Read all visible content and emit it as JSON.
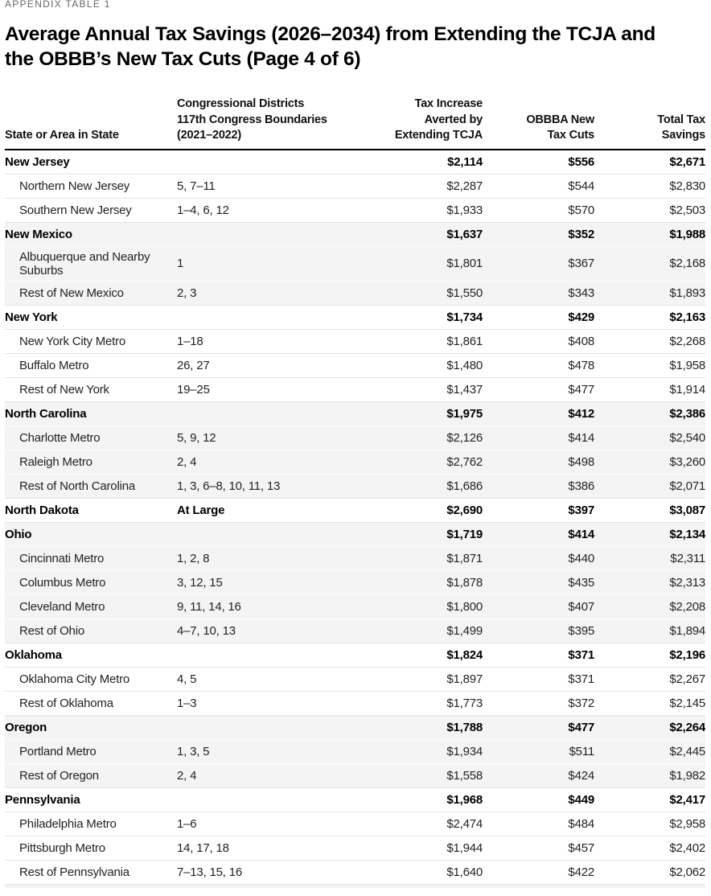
{
  "eyebrow": "APPENDIX TABLE 1",
  "title": "Average Annual Tax Savings (2026–2034) from Extending the TCJA and\nthe OBBB’s New Tax Cuts (Page 4 of 6)",
  "colors": {
    "shaded_row_bg": "#f4f4f4",
    "separator": "#e3e3e3",
    "header_rule": "#000000",
    "eyebrow_text": "#666666",
    "body_text": "#222222"
  },
  "table": {
    "columns": {
      "state": "State or Area in State",
      "districts": "Congressional Districts\n117th Congress Boundaries\n(2021–2022)",
      "tcja": "Tax Increase\nAverted by\nExtending TCJA",
      "obbba": "OBBBA New\nTax Cuts",
      "total": "Total Tax\nSavings"
    },
    "rows": [
      {
        "type": "state",
        "shaded": false,
        "name": "New Jersey",
        "districts": "",
        "tcja": "$2,114",
        "obbba": "$556",
        "total": "$2,671"
      },
      {
        "type": "area",
        "shaded": false,
        "name": "Northern New Jersey",
        "districts": "5, 7–11",
        "tcja": "$2,287",
        "obbba": "$544",
        "total": "$2,830"
      },
      {
        "type": "area",
        "shaded": false,
        "name": "Southern New Jersey",
        "districts": "1–4, 6, 12",
        "tcja": "$1,933",
        "obbba": "$570",
        "total": "$2,503"
      },
      {
        "type": "state",
        "shaded": true,
        "name": "New Mexico",
        "districts": "",
        "tcja": "$1,637",
        "obbba": "$352",
        "total": "$1,988"
      },
      {
        "type": "area",
        "shaded": true,
        "name": "Albuquerque and Nearby Suburbs",
        "districts": "1",
        "tcja": "$1,801",
        "obbba": "$367",
        "total": "$2,168"
      },
      {
        "type": "area",
        "shaded": true,
        "name": "Rest of New Mexico",
        "districts": "2, 3",
        "tcja": "$1,550",
        "obbba": "$343",
        "total": "$1,893"
      },
      {
        "type": "state",
        "shaded": false,
        "name": "New York",
        "districts": "",
        "tcja": "$1,734",
        "obbba": "$429",
        "total": "$2,163"
      },
      {
        "type": "area",
        "shaded": false,
        "name": "New York City Metro",
        "districts": "1–18",
        "tcja": "$1,861",
        "obbba": "$408",
        "total": "$2,268"
      },
      {
        "type": "area",
        "shaded": false,
        "name": "Buffalo Metro",
        "districts": "26, 27",
        "tcja": "$1,480",
        "obbba": "$478",
        "total": "$1,958"
      },
      {
        "type": "area",
        "shaded": false,
        "name": "Rest of New York",
        "districts": "19–25",
        "tcja": "$1,437",
        "obbba": "$477",
        "total": "$1,914"
      },
      {
        "type": "state",
        "shaded": true,
        "name": "North Carolina",
        "districts": "",
        "tcja": "$1,975",
        "obbba": "$412",
        "total": "$2,386"
      },
      {
        "type": "area",
        "shaded": true,
        "name": "Charlotte Metro",
        "districts": "5, 9, 12",
        "tcja": "$2,126",
        "obbba": "$414",
        "total": "$2,540"
      },
      {
        "type": "area",
        "shaded": true,
        "name": "Raleigh Metro",
        "districts": "2, 4",
        "tcja": "$2,762",
        "obbba": "$498",
        "total": "$3,260"
      },
      {
        "type": "area",
        "shaded": true,
        "name": "Rest of North Carolina",
        "districts": "1, 3, 6–8, 10, 11, 13",
        "tcja": "$1,686",
        "obbba": "$386",
        "total": "$2,071"
      },
      {
        "type": "state",
        "shaded": false,
        "name": "North Dakota",
        "districts": "At Large",
        "tcja": "$2,690",
        "obbba": "$397",
        "total": "$3,087"
      },
      {
        "type": "state",
        "shaded": true,
        "name": "Ohio",
        "districts": "",
        "tcja": "$1,719",
        "obbba": "$414",
        "total": "$2,134"
      },
      {
        "type": "area",
        "shaded": true,
        "name": "Cincinnati Metro",
        "districts": "1, 2, 8",
        "tcja": "$1,871",
        "obbba": "$440",
        "total": "$2,311"
      },
      {
        "type": "area",
        "shaded": true,
        "name": "Columbus Metro",
        "districts": "3, 12, 15",
        "tcja": "$1,878",
        "obbba": "$435",
        "total": "$2,313"
      },
      {
        "type": "area",
        "shaded": true,
        "name": "Cleveland Metro",
        "districts": "9, 11, 14, 16",
        "tcja": "$1,800",
        "obbba": "$407",
        "total": "$2,208"
      },
      {
        "type": "area",
        "shaded": true,
        "name": "Rest of Ohio",
        "districts": "4–7, 10, 13",
        "tcja": "$1,499",
        "obbba": "$395",
        "total": "$1,894"
      },
      {
        "type": "state",
        "shaded": false,
        "name": "Oklahoma",
        "districts": "",
        "tcja": "$1,824",
        "obbba": "$371",
        "total": "$2,196"
      },
      {
        "type": "area",
        "shaded": false,
        "name": "Oklahoma City Metro",
        "districts": "4, 5",
        "tcja": "$1,897",
        "obbba": "$371",
        "total": "$2,267"
      },
      {
        "type": "area",
        "shaded": false,
        "name": "Rest of Oklahoma",
        "districts": "1–3",
        "tcja": "$1,773",
        "obbba": "$372",
        "total": "$2,145"
      },
      {
        "type": "state",
        "shaded": true,
        "name": "Oregon",
        "districts": "",
        "tcja": "$1,788",
        "obbba": "$477",
        "total": "$2,264"
      },
      {
        "type": "area",
        "shaded": true,
        "name": "Portland Metro",
        "districts": "1, 3, 5",
        "tcja": "$1,934",
        "obbba": "$511",
        "total": "$2,445"
      },
      {
        "type": "area",
        "shaded": true,
        "name": "Rest of Oregon",
        "districts": "2, 4",
        "tcja": "$1,558",
        "obbba": "$424",
        "total": "$1,982"
      },
      {
        "type": "state",
        "shaded": false,
        "name": "Pennsylvania",
        "districts": "",
        "tcja": "$1,968",
        "obbba": "$449",
        "total": "$2,417"
      },
      {
        "type": "area",
        "shaded": false,
        "name": "Philadelphia Metro",
        "districts": "1–6",
        "tcja": "$2,474",
        "obbba": "$484",
        "total": "$2,958"
      },
      {
        "type": "area",
        "shaded": false,
        "name": "Pittsburgh Metro",
        "districts": "14, 17, 18",
        "tcja": "$1,944",
        "obbba": "$457",
        "total": "$2,402"
      },
      {
        "type": "area",
        "shaded": false,
        "name": "Rest of Pennsylvania",
        "districts": "7–13, 15, 16",
        "tcja": "$1,640",
        "obbba": "$422",
        "total": "$2,062"
      }
    ]
  }
}
